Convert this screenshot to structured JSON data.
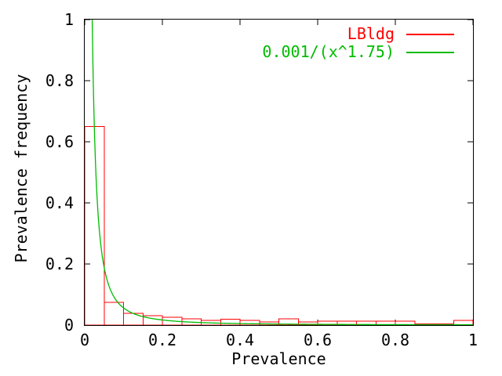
{
  "figure": {
    "background": "#ffffff",
    "text_color": "#000000",
    "border_color": "#000000"
  },
  "chart_data": {
    "type": "bar",
    "title": "",
    "xlabel": "Prevalence",
    "ylabel": "Prevalence frequency",
    "xlim": [
      0,
      1
    ],
    "ylim": [
      0,
      1
    ],
    "xticks": [
      0,
      0.2,
      0.4,
      0.6,
      0.8,
      1
    ],
    "xtick_labels": [
      "0",
      "0.2",
      "0.4",
      "0.6",
      "0.8",
      "1"
    ],
    "yticks": [
      0,
      0.2,
      0.4,
      0.6,
      0.8,
      1
    ],
    "ytick_labels": [
      "0",
      "0.2",
      "0.4",
      "0.6",
      "0.8",
      "1"
    ],
    "grid": false,
    "legend_position": "top-right-inside",
    "tick_style": "inward-mirrored",
    "series": [
      {
        "name": "LBldg",
        "kind": "histogram",
        "color": "#ff0000",
        "bin_start": 0,
        "bin_width": 0.05,
        "values": [
          0.65,
          0.074,
          0.0385,
          0.031,
          0.026,
          0.0205,
          0.0155,
          0.019,
          0.0155,
          0.01,
          0.02,
          0.01,
          0.013,
          0.013,
          0.013,
          0.013,
          0.013,
          0.004,
          0.004,
          0.0155
        ]
      },
      {
        "name": "0.001/(x^1.75)",
        "kind": "power-curve",
        "color": "#00bb00",
        "coefficient": 0.001,
        "exponent": 1.75
      }
    ]
  }
}
